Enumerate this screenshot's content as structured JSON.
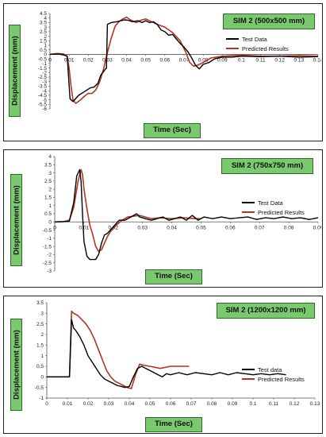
{
  "colors": {
    "test": "#000000",
    "predicted": "#b5341c",
    "label_bg": "#7bc96f"
  },
  "chart_data": [
    {
      "type": "line",
      "title": "SIM 2 (500x500 mm)",
      "xlabel": "Time  (Sec)",
      "ylabel": "Displacement    (mm)",
      "xlim": [
        0,
        0.14
      ],
      "ylim": [
        -6,
        4.5
      ],
      "xticks": [
        "0",
        "0.01",
        "0.02",
        "0.03",
        "0.04",
        "0.05",
        "0.06",
        "0.07",
        "0.08",
        "0.09",
        "0.1",
        "0.11",
        "0.12",
        "0.13",
        "0.14"
      ],
      "yticks": [
        "4.5",
        "4",
        "3.5",
        "3",
        "2.5",
        "2",
        "1.5",
        "1",
        "0.5",
        "0",
        "-0.5",
        "-1",
        "-1.5",
        "-2",
        "-2.5",
        "-3",
        "-3.5",
        "-4",
        "-4.5",
        "-5",
        "-5.5",
        "-6"
      ],
      "legend": [
        "Test Data",
        "Predicted Results"
      ],
      "series": [
        {
          "name": "Test Data",
          "x": [
            0,
            0.004,
            0.007,
            0.009,
            0.0105,
            0.012,
            0.015,
            0.018,
            0.021,
            0.023,
            0.025,
            0.0265,
            0.028,
            0.029,
            0.0295,
            0.03,
            0.032,
            0.035,
            0.037,
            0.039,
            0.041,
            0.043,
            0.046,
            0.048,
            0.05,
            0.052,
            0.054,
            0.056,
            0.058,
            0.06,
            0.062,
            0.064,
            0.066,
            0.068,
            0.07,
            0.072,
            0.074,
            0.076,
            0.078,
            0.08,
            0.083,
            0.086,
            0.09,
            0.095,
            0.1,
            0.11,
            0.12,
            0.13,
            0.14
          ],
          "y": [
            0,
            0.05,
            -0.05,
            -0.2,
            -4.9,
            -5.2,
            -4.5,
            -4.1,
            -3.7,
            -3.6,
            -3.2,
            -2.3,
            -1.9,
            -1.6,
            -1.5,
            3.3,
            3.5,
            3.6,
            3.7,
            3.8,
            3.75,
            3.6,
            3.7,
            3.5,
            3.7,
            3.5,
            3.6,
            3.3,
            2.7,
            2.5,
            2.1,
            2.2,
            1.7,
            1.2,
            0.8,
            0.3,
            -0.4,
            -1.2,
            -1.6,
            -1.1,
            -0.9,
            -0.5,
            -0.3,
            -0.3,
            -0.2,
            -0.25,
            -0.2,
            -0.3,
            -0.25
          ]
        },
        {
          "name": "Predicted Results",
          "x": [
            0,
            0.004,
            0.007,
            0.009,
            0.01,
            0.011,
            0.012,
            0.0135,
            0.016,
            0.018,
            0.02,
            0.022,
            0.024,
            0.026,
            0.028,
            0.03,
            0.032,
            0.034,
            0.036,
            0.038,
            0.04,
            0.042,
            0.045,
            0.048,
            0.05,
            0.053,
            0.056,
            0.06,
            0.064,
            0.068,
            0.071,
            0.073,
            0.075,
            0.077,
            0.08,
            0.084,
            0.09,
            0.1,
            0.11,
            0.12,
            0.13,
            0.14
          ],
          "y": [
            0,
            0.1,
            0.05,
            -0.2,
            -1.5,
            -3.5,
            -5.0,
            -5.4,
            -5.0,
            -4.6,
            -4.3,
            -4.3,
            -3.9,
            -3.0,
            -1.6,
            0.2,
            1.8,
            3.1,
            3.6,
            3.9,
            4.1,
            3.8,
            3.5,
            3.8,
            3.9,
            3.6,
            3.3,
            3.0,
            2.4,
            1.5,
            0.2,
            -0.9,
            -1.3,
            -1.2,
            -0.9,
            -0.4,
            -0.2,
            -0.1,
            -0.2,
            -0.2,
            -0.15,
            -0.2
          ]
        }
      ]
    },
    {
      "type": "line",
      "title": "SIM 2 (750x750 mm)",
      "xlabel": "Time  (Sec)",
      "ylabel": "Displacement    (mm)",
      "xlim": [
        0,
        0.09
      ],
      "ylim": [
        -3,
        4
      ],
      "xticks": [
        "0",
        "0.01",
        "0.02",
        "0.03",
        "0.04",
        "0.05",
        "0.06",
        "0.07",
        "0.08",
        "0.09"
      ],
      "yticks": [
        "4",
        "3.5",
        "3",
        "2.5",
        "2",
        "1.5",
        "1",
        "0.5",
        "0",
        "-0.5",
        "-1",
        "-1.5",
        "-2",
        "-2.5",
        "-3"
      ],
      "legend": [
        "Test Data",
        "Predicted Results"
      ],
      "series": [
        {
          "name": "Test Data",
          "x": [
            0,
            0.003,
            0.005,
            0.0065,
            0.0075,
            0.0085,
            0.009,
            0.0095,
            0.01,
            0.011,
            0.012,
            0.013,
            0.014,
            0.015,
            0.016,
            0.017,
            0.018,
            0.019,
            0.02,
            0.022,
            0.024,
            0.026,
            0.028,
            0.029,
            0.031,
            0.033,
            0.035,
            0.037,
            0.039,
            0.041,
            0.043,
            0.045,
            0.047,
            0.049,
            0.051,
            0.054,
            0.057,
            0.06,
            0.063,
            0.066,
            0.069,
            0.072,
            0.075,
            0.078,
            0.081,
            0.084,
            0.087,
            0.09
          ],
          "y": [
            0,
            0.02,
            0.05,
            1.2,
            2.8,
            3.2,
            2.5,
            0.5,
            -1.2,
            -2.1,
            -2.3,
            -2.3,
            -2.3,
            -2.0,
            -1.3,
            -0.8,
            -0.7,
            -0.5,
            -0.3,
            0.1,
            0.1,
            0.3,
            0.5,
            0.3,
            0.2,
            0.1,
            0.2,
            0.3,
            0.1,
            0.2,
            0.3,
            0.1,
            0.4,
            0.1,
            0.3,
            0.2,
            0.3,
            0.2,
            0.25,
            0.3,
            0.15,
            0.25,
            0.2,
            0.3,
            0.2,
            0.25,
            0.15,
            0.25
          ]
        },
        {
          "name": "Predicted Results",
          "x": [
            0,
            0.003,
            0.005,
            0.0065,
            0.008,
            0.009,
            0.0095,
            0.01,
            0.011,
            0.012,
            0.013,
            0.014,
            0.015,
            0.016,
            0.017,
            0.018,
            0.019,
            0.021,
            0.023,
            0.025,
            0.027,
            0.029,
            0.031,
            0.033,
            0.036,
            0.04,
            0.044,
            0.048,
            0.05
          ],
          "y": [
            0,
            0.02,
            0.1,
            0.9,
            2.5,
            3.2,
            2.9,
            2.0,
            0.8,
            -0.2,
            -0.8,
            -1.5,
            -1.8,
            -1.7,
            -1.3,
            -0.9,
            -0.6,
            -0.2,
            0.1,
            0.3,
            0.35,
            0.4,
            0.3,
            0.2,
            0.25,
            0.2,
            0.25,
            0.2,
            0.2
          ]
        }
      ]
    },
    {
      "type": "line",
      "title": "SIM 2 (1200x1200 mm)",
      "xlabel": "Time  (Sec)",
      "ylabel": "Displacement    (mm)",
      "xlim": [
        0,
        0.13
      ],
      "ylim": [
        -1,
        3.5
      ],
      "xticks": [
        "0",
        "0.01",
        "0.02",
        "0.03",
        "0.04",
        "0.05",
        "0.06",
        "0.07",
        "0.08",
        "0.09",
        "0.1",
        "0.11",
        "0.12",
        "0.13"
      ],
      "yticks": [
        "3.5",
        "3",
        "2.5",
        "2",
        "1.5",
        "1",
        "0.5",
        "0",
        "-0.5",
        "-1"
      ],
      "legend": [
        "Test data",
        "Predicted Results"
      ],
      "series": [
        {
          "name": "Test data",
          "x": [
            0,
            0.005,
            0.01,
            0.011,
            0.012,
            0.013,
            0.014,
            0.016,
            0.018,
            0.02,
            0.022,
            0.024,
            0.026,
            0.028,
            0.03,
            0.032,
            0.034,
            0.036,
            0.038,
            0.04,
            0.042,
            0.044,
            0.046,
            0.048,
            0.05,
            0.052,
            0.054,
            0.056,
            0.058,
            0.06,
            0.064,
            0.068,
            0.072,
            0.076,
            0.08,
            0.084,
            0.088,
            0.092,
            0.096,
            0.1,
            0.104,
            0.108,
            0.112,
            0.116
          ],
          "y": [
            0,
            0,
            0,
            0,
            2.7,
            2.3,
            2.2,
            1.9,
            1.5,
            1.0,
            0.7,
            0.4,
            0.1,
            -0.1,
            -0.2,
            -0.3,
            -0.4,
            -0.45,
            -0.5,
            -0.45,
            0.0,
            0.4,
            0.5,
            0.4,
            0.3,
            0.2,
            0.1,
            0.0,
            0.15,
            0.1,
            0.2,
            0.1,
            0.2,
            0.15,
            0.1,
            0.2,
            0.1,
            0.2,
            0.15,
            0.1,
            0.15,
            0.1,
            0.15,
            0.1
          ]
        },
        {
          "name": "Predicted Results",
          "x": [
            0,
            0.005,
            0.01,
            0.011,
            0.012,
            0.013,
            0.015,
            0.017,
            0.019,
            0.021,
            0.023,
            0.025,
            0.027,
            0.029,
            0.031,
            0.033,
            0.035,
            0.037,
            0.039,
            0.041,
            0.043,
            0.045,
            0.047,
            0.05,
            0.055,
            0.06,
            0.065,
            0.069
          ],
          "y": [
            0,
            0,
            0,
            0,
            3.1,
            3.0,
            2.9,
            2.7,
            2.5,
            2.2,
            1.8,
            1.3,
            0.8,
            0.3,
            0.0,
            -0.2,
            -0.3,
            -0.4,
            -0.5,
            -0.55,
            0.1,
            0.6,
            0.55,
            0.5,
            0.4,
            0.5,
            0.5,
            0.5
          ]
        }
      ]
    }
  ]
}
